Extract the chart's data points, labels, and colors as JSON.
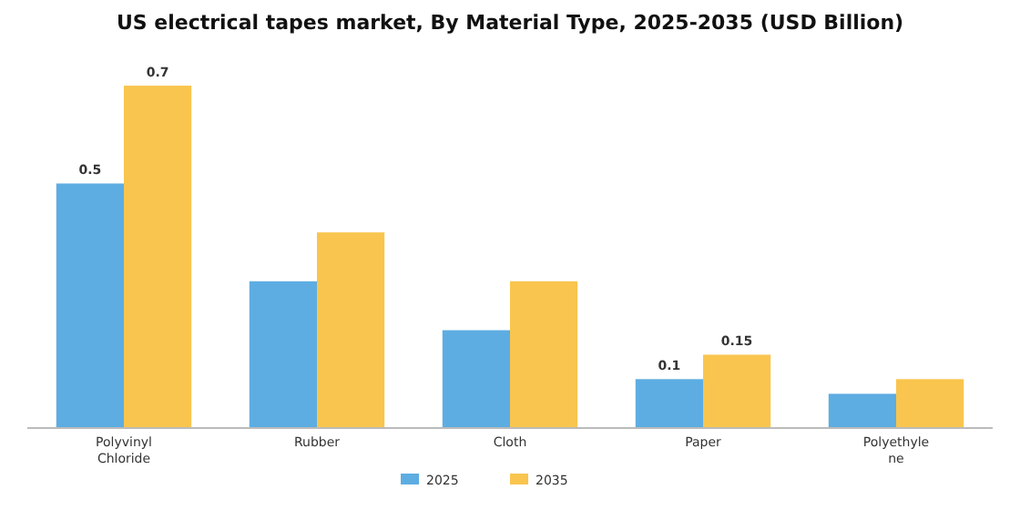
{
  "chart_data": {
    "type": "bar",
    "title": "US electrical tapes market, By Material Type, 2025-2035 (USD Billion)",
    "categories": [
      "Polyvinyl Chloride",
      "Rubber",
      "Cloth",
      "Paper",
      "Polyethylene"
    ],
    "series": [
      {
        "name": "2025",
        "color": "#5dade2",
        "values": [
          0.5,
          0.3,
          0.2,
          0.1,
          0.07
        ],
        "value_labels": [
          "0.5",
          null,
          null,
          "0.1",
          null
        ]
      },
      {
        "name": "2035",
        "color": "#f9c54e",
        "values": [
          0.7,
          0.4,
          0.3,
          0.15,
          0.1
        ],
        "value_labels": [
          "0.7",
          null,
          null,
          "0.15",
          null
        ]
      }
    ],
    "legend": "bottom"
  }
}
